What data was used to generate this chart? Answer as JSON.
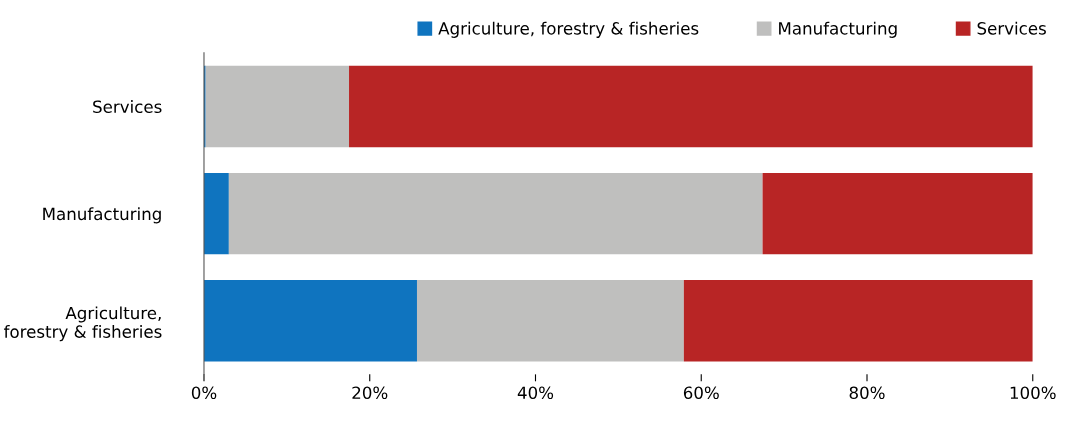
{
  "chart_data": {
    "type": "bar",
    "orientation": "horizontal",
    "stacked": true,
    "categories": [
      "Services",
      "Manufacturing",
      "Agriculture,\nforestry & fisheries"
    ],
    "series": [
      {
        "name": "Agriculture, forestry & fisheries",
        "color": "#0f74bf",
        "values": [
          0.2,
          3.0,
          25.7
        ]
      },
      {
        "name": "Manufacturing",
        "color": "#bfbfbe",
        "values": [
          17.3,
          64.4,
          32.2
        ]
      },
      {
        "name": "Services",
        "color": "#b82525",
        "values": [
          82.5,
          32.6,
          42.1
        ]
      }
    ],
    "xlim": [
      0,
      100
    ],
    "xticks": [
      {
        "value": 0,
        "label": "0%"
      },
      {
        "value": 20,
        "label": "20%"
      },
      {
        "value": 40,
        "label": "40%"
      },
      {
        "value": 60,
        "label": "60%"
      },
      {
        "value": 80,
        "label": "80%"
      },
      {
        "value": 100,
        "label": "100%"
      }
    ],
    "grid": false,
    "legend": "top right"
  }
}
